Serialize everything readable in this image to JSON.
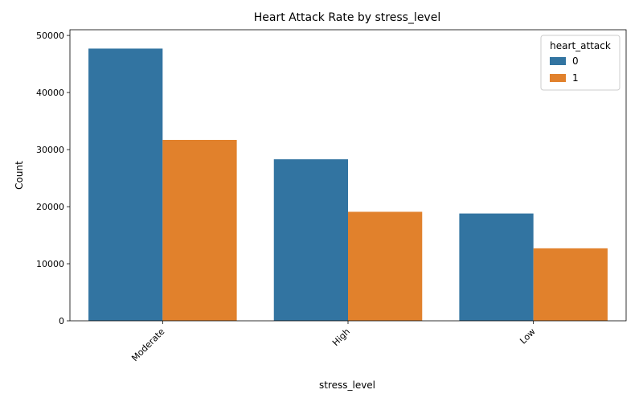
{
  "chart_data": {
    "type": "bar",
    "title": "Heart Attack Rate by stress_level",
    "xlabel": "stress_level",
    "ylabel": "Count",
    "categories": [
      "Moderate",
      "High",
      "Low"
    ],
    "series": [
      {
        "name": "0",
        "values": [
          47700,
          28300,
          18800
        ],
        "color": "#3274a1"
      },
      {
        "name": "1",
        "values": [
          31700,
          19100,
          12700
        ],
        "color": "#e1812c"
      }
    ],
    "ylim": [
      0,
      51000
    ],
    "yticks": [
      0,
      10000,
      20000,
      30000,
      40000,
      50000
    ],
    "legend": {
      "title": "heart_attack",
      "position": "top-right"
    },
    "grid": false
  }
}
